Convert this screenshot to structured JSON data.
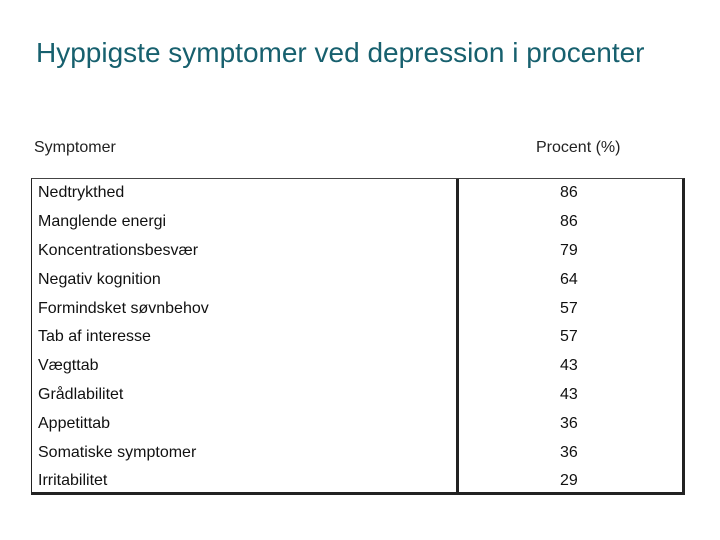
{
  "title": "Hyppigste symptomer ved depression i procenter",
  "table": {
    "header_symptom": "Symptomer",
    "header_percent": "Procent (%)",
    "rows": [
      {
        "name": "Nedtrykthed",
        "value": "86"
      },
      {
        "name": "Manglende energi",
        "value": "86"
      },
      {
        "name": "Koncentrationsbesvær",
        "value": "79"
      },
      {
        "name": "Negativ kognition",
        "value": "64"
      },
      {
        "name": "Formindsket søvnbehov",
        "value": "57"
      },
      {
        "name": "Tab af interesse",
        "value": "57"
      },
      {
        "name": "Vægttab",
        "value": "43"
      },
      {
        "name": "Grådlabilitet",
        "value": "43"
      },
      {
        "name": "Appetittab",
        "value": "36"
      },
      {
        "name": "Somatiske symptomer",
        "value": "36"
      },
      {
        "name": "Irritabilitet",
        "value": "29"
      }
    ]
  }
}
